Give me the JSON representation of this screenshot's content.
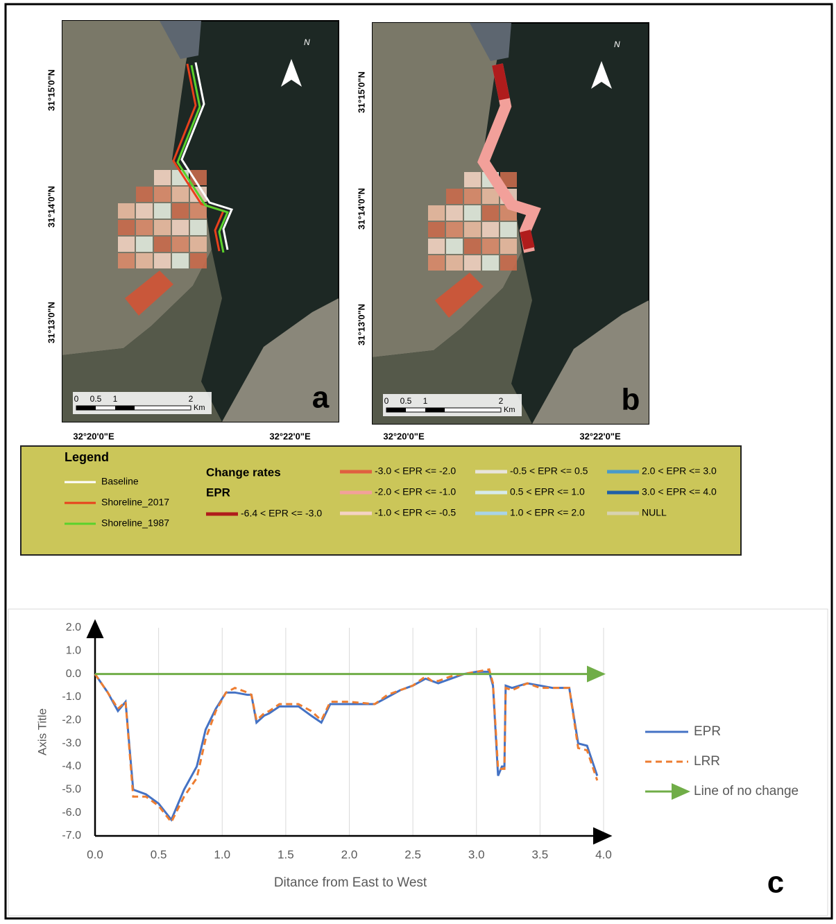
{
  "maps": [
    {
      "label": "a",
      "north": "N",
      "lat_labels": [
        "31°15'0\"N",
        "31°14'0\"N",
        "31°13'0\"N"
      ],
      "lon_labels": [
        "32°20'0\"E",
        "32°22'0\"E"
      ],
      "scale": {
        "ticks": [
          "0",
          "0.5",
          "1",
          "2"
        ],
        "unit": "Km"
      }
    },
    {
      "label": "b",
      "north": "N",
      "lat_labels": [
        "31°15'0\"N",
        "31°14'0\"N",
        "31°13'0\"N"
      ],
      "lon_labels": [
        "32°20'0\"E",
        "32°22'0\"E"
      ],
      "scale": {
        "ticks": [
          "0",
          "0.5",
          "1",
          "2"
        ],
        "unit": "Km"
      }
    }
  ],
  "legend": {
    "title": "Legend",
    "lines": [
      {
        "name": "Baseline",
        "color": "#ffffff"
      },
      {
        "name": "Shoreline_2017",
        "color": "#e8401c"
      },
      {
        "name": "Shoreline_1987",
        "color": "#5ad22c"
      }
    ],
    "heading": "Change rates",
    "subheading": "EPR",
    "classes": [
      {
        "name": "-6.4 < EPR <= -3.0",
        "color": "#b01c1c"
      },
      {
        "name": "-3.0 < EPR <= -2.0",
        "color": "#e06040"
      },
      {
        "name": "-2.0 < EPR <= -1.0",
        "color": "#f2a09a"
      },
      {
        "name": "-1.0 < EPR <= -0.5",
        "color": "#f5d3c4"
      },
      {
        "name": "-0.5 < EPR <= 0.5",
        "color": "#e8e4dc"
      },
      {
        "name": "0.5 < EPR <= 1.0",
        "color": "#d6eaea"
      },
      {
        "name": "1.0 < EPR <= 2.0",
        "color": "#a8d4e8"
      },
      {
        "name": "2.0 < EPR <= 3.0",
        "color": "#4a9ac9"
      },
      {
        "name": "3.0 < EPR <= 4.0",
        "color": "#1f5fa6"
      },
      {
        "name": "NULL",
        "color": "#d8d3b0"
      }
    ]
  },
  "chart_data": {
    "type": "line",
    "label": "c",
    "y_title": "Axis Title",
    "x_title": "Ditance from East to West",
    "xlim": [
      0,
      4
    ],
    "ylim": [
      -7,
      2
    ],
    "grid": true,
    "xticks": [
      {
        "value": 0,
        "label": "0.0"
      },
      0.5,
      {
        "value": 1,
        "label": "1.0"
      },
      1.5,
      {
        "value": 2,
        "label": "2.0"
      },
      2.5,
      {
        "value": 3,
        "label": "3.0"
      },
      3.5,
      {
        "value": 4,
        "label": "4.0"
      }
    ],
    "yticks": [
      {
        "value": 2,
        "label": "2.0"
      },
      {
        "value": 1,
        "label": "1.0"
      },
      {
        "value": 0,
        "label": "0.0"
      },
      {
        "value": -1,
        "label": "-1.0"
      },
      {
        "value": -2,
        "label": "-2.0"
      },
      {
        "value": -3,
        "label": "-3.0"
      },
      {
        "value": -4,
        "label": "-4.0"
      },
      {
        "value": -5,
        "label": "-5.0"
      },
      {
        "value": -6,
        "label": "-6.0"
      },
      {
        "value": -7,
        "label": "-7.0"
      }
    ],
    "series": [
      {
        "name": "EPR",
        "color": "#4472c4",
        "dash": false,
        "x": [
          0,
          0.1,
          0.18,
          0.24,
          0.3,
          0.4,
          0.5,
          0.6,
          0.7,
          0.8,
          0.87,
          0.95,
          1.03,
          1.1,
          1.2,
          1.23,
          1.27,
          1.33,
          1.37,
          1.45,
          1.6,
          1.7,
          1.78,
          1.85,
          2.0,
          2.2,
          2.3,
          2.4,
          2.5,
          2.6,
          2.65,
          2.7,
          2.8,
          2.9,
          3.0,
          3.1,
          3.13,
          3.17,
          3.2,
          3.22,
          3.23,
          3.28,
          3.4,
          3.5,
          3.6,
          3.73,
          3.8,
          3.87,
          3.95
        ],
        "values": [
          0,
          -0.8,
          -1.6,
          -1.2,
          -5.0,
          -5.2,
          -5.6,
          -6.3,
          -5.0,
          -4.0,
          -2.4,
          -1.5,
          -0.8,
          -0.8,
          -0.9,
          -0.9,
          -2.1,
          -1.8,
          -1.7,
          -1.4,
          -1.4,
          -1.8,
          -2.1,
          -1.3,
          -1.3,
          -1.3,
          -1.0,
          -0.7,
          -0.5,
          -0.2,
          -0.3,
          -0.4,
          -0.2,
          0.0,
          0.1,
          0.1,
          -0.5,
          -4.4,
          -4.0,
          -4.0,
          -0.5,
          -0.6,
          -0.4,
          -0.5,
          -0.6,
          -0.6,
          -3.0,
          -3.1,
          -4.4
        ]
      },
      {
        "name": "LRR",
        "color": "#ed7d31",
        "dash": true,
        "x": [
          0,
          0.1,
          0.18,
          0.24,
          0.3,
          0.4,
          0.5,
          0.6,
          0.7,
          0.8,
          0.87,
          0.95,
          1.03,
          1.1,
          1.2,
          1.23,
          1.27,
          1.33,
          1.37,
          1.45,
          1.6,
          1.7,
          1.78,
          1.85,
          2.0,
          2.2,
          2.3,
          2.4,
          2.5,
          2.6,
          2.65,
          2.7,
          2.8,
          2.9,
          3.0,
          3.1,
          3.13,
          3.17,
          3.2,
          3.22,
          3.23,
          3.28,
          3.4,
          3.5,
          3.6,
          3.73,
          3.8,
          3.87,
          3.95
        ],
        "values": [
          0,
          -0.8,
          -1.5,
          -1.2,
          -5.3,
          -5.3,
          -5.7,
          -6.4,
          -5.3,
          -4.5,
          -2.8,
          -1.6,
          -0.8,
          -0.6,
          -0.8,
          -0.9,
          -2.0,
          -1.7,
          -1.6,
          -1.3,
          -1.3,
          -1.6,
          -2.0,
          -1.2,
          -1.2,
          -1.3,
          -0.9,
          -0.7,
          -0.5,
          -0.1,
          -0.3,
          -0.3,
          -0.1,
          0.0,
          0.1,
          0.2,
          -0.4,
          -4.1,
          -4.1,
          -4.1,
          -0.6,
          -0.7,
          -0.4,
          -0.6,
          -0.6,
          -0.6,
          -3.2,
          -3.3,
          -4.6
        ]
      },
      {
        "name": "Line of no change",
        "color": "#70ad47",
        "dash": false,
        "arrow": true,
        "x": [
          0,
          4
        ],
        "values": [
          0,
          0
        ]
      }
    ]
  }
}
